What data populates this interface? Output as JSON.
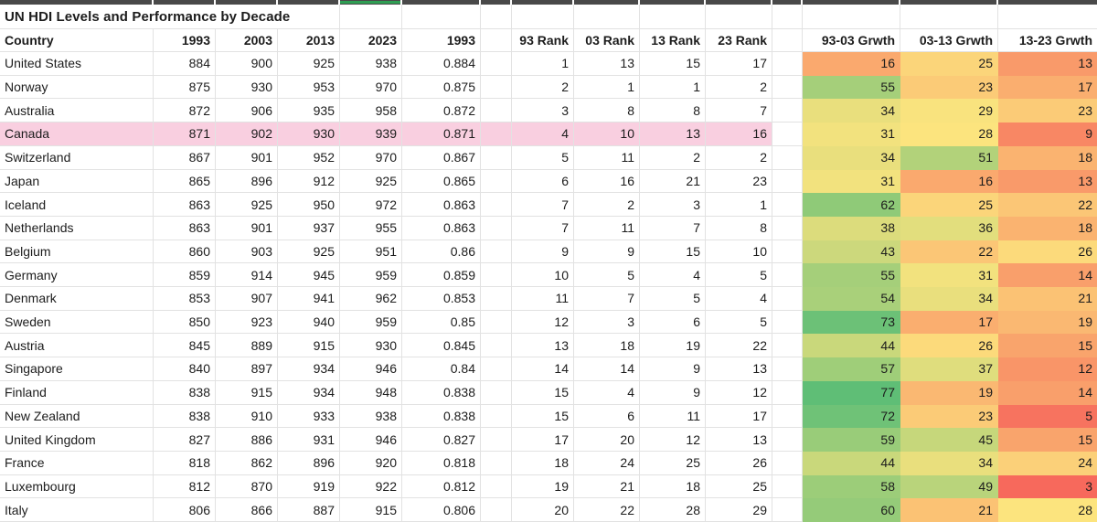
{
  "sheet": {
    "title": "UN HDI Levels and Performance by Decade",
    "selection": {
      "column_label": "2023",
      "column_index": 4,
      "indicator_color": "#2E9E53"
    },
    "highlight_color": "#F9CFE0",
    "gridline_color": "#E2E2E2",
    "header_strip_color": "#494949",
    "heatmap_scale": {
      "anchors": [
        [
          3,
          "#F7695C"
        ],
        [
          28,
          "#FCE47E"
        ],
        [
          77,
          "#5FBE76"
        ]
      ]
    },
    "columns": [
      {
        "key": "country",
        "label": "Country",
        "align": "left"
      },
      {
        "key": "y1993",
        "label": "1993",
        "align": "right"
      },
      {
        "key": "y2003",
        "label": "2003",
        "align": "right"
      },
      {
        "key": "y2013",
        "label": "2013",
        "align": "right"
      },
      {
        "key": "y2023",
        "label": "2023",
        "align": "right"
      },
      {
        "key": "hdi1993",
        "label": "1993",
        "align": "right"
      },
      {
        "key": "sp1",
        "label": "",
        "align": "left"
      },
      {
        "key": "r93",
        "label": "93 Rank",
        "align": "right"
      },
      {
        "key": "r03",
        "label": "03 Rank",
        "align": "right"
      },
      {
        "key": "r13",
        "label": "13 Rank",
        "align": "right"
      },
      {
        "key": "r23",
        "label": "23 Rank",
        "align": "right"
      },
      {
        "key": "sp2",
        "label": "",
        "align": "left"
      },
      {
        "key": "g9303",
        "label": "93-03 Grwth",
        "align": "right",
        "heatmap": true
      },
      {
        "key": "g0313",
        "label": "03-13 Grwth",
        "align": "right",
        "heatmap": true
      },
      {
        "key": "g1323",
        "label": "13-23 Grwth",
        "align": "right",
        "heatmap": true
      }
    ],
    "rows": [
      {
        "country": "United States",
        "y1993": 884,
        "y2003": 900,
        "y2013": 925,
        "y2023": 938,
        "hdi1993": "0.884",
        "r93": 1,
        "r03": 13,
        "r13": 15,
        "r23": 17,
        "g9303": 16,
        "g0313": 25,
        "g1323": 13,
        "highlight": false
      },
      {
        "country": "Norway",
        "y1993": 875,
        "y2003": 930,
        "y2013": 953,
        "y2023": 970,
        "hdi1993": "0.875",
        "r93": 2,
        "r03": 1,
        "r13": 1,
        "r23": 2,
        "g9303": 55,
        "g0313": 23,
        "g1323": 17,
        "highlight": false
      },
      {
        "country": "Australia",
        "y1993": 872,
        "y2003": 906,
        "y2013": 935,
        "y2023": 958,
        "hdi1993": "0.872",
        "r93": 3,
        "r03": 8,
        "r13": 8,
        "r23": 7,
        "g9303": 34,
        "g0313": 29,
        "g1323": 23,
        "highlight": false
      },
      {
        "country": "Canada",
        "y1993": 871,
        "y2003": 902,
        "y2013": 930,
        "y2023": 939,
        "hdi1993": "0.871",
        "r93": 4,
        "r03": 10,
        "r13": 13,
        "r23": 16,
        "g9303": 31,
        "g0313": 28,
        "g1323": 9,
        "highlight": true
      },
      {
        "country": "Switzerland",
        "y1993": 867,
        "y2003": 901,
        "y2013": 952,
        "y2023": 970,
        "hdi1993": "0.867",
        "r93": 5,
        "r03": 11,
        "r13": 2,
        "r23": 2,
        "g9303": 34,
        "g0313": 51,
        "g1323": 18,
        "highlight": false
      },
      {
        "country": "Japan",
        "y1993": 865,
        "y2003": 896,
        "y2013": 912,
        "y2023": 925,
        "hdi1993": "0.865",
        "r93": 6,
        "r03": 16,
        "r13": 21,
        "r23": 23,
        "g9303": 31,
        "g0313": 16,
        "g1323": 13,
        "highlight": false
      },
      {
        "country": "Iceland",
        "y1993": 863,
        "y2003": 925,
        "y2013": 950,
        "y2023": 972,
        "hdi1993": "0.863",
        "r93": 7,
        "r03": 2,
        "r13": 3,
        "r23": 1,
        "g9303": 62,
        "g0313": 25,
        "g1323": 22,
        "highlight": false
      },
      {
        "country": "Netherlands",
        "y1993": 863,
        "y2003": 901,
        "y2013": 937,
        "y2023": 955,
        "hdi1993": "0.863",
        "r93": 7,
        "r03": 11,
        "r13": 7,
        "r23": 8,
        "g9303": 38,
        "g0313": 36,
        "g1323": 18,
        "highlight": false
      },
      {
        "country": "Belgium",
        "y1993": 860,
        "y2003": 903,
        "y2013": 925,
        "y2023": 951,
        "hdi1993": "0.86",
        "r93": 9,
        "r03": 9,
        "r13": 15,
        "r23": 10,
        "g9303": 43,
        "g0313": 22,
        "g1323": 26,
        "highlight": false
      },
      {
        "country": "Germany",
        "y1993": 859,
        "y2003": 914,
        "y2013": 945,
        "y2023": 959,
        "hdi1993": "0.859",
        "r93": 10,
        "r03": 5,
        "r13": 4,
        "r23": 5,
        "g9303": 55,
        "g0313": 31,
        "g1323": 14,
        "highlight": false
      },
      {
        "country": "Denmark",
        "y1993": 853,
        "y2003": 907,
        "y2013": 941,
        "y2023": 962,
        "hdi1993": "0.853",
        "r93": 11,
        "r03": 7,
        "r13": 5,
        "r23": 4,
        "g9303": 54,
        "g0313": 34,
        "g1323": 21,
        "highlight": false
      },
      {
        "country": "Sweden",
        "y1993": 850,
        "y2003": 923,
        "y2013": 940,
        "y2023": 959,
        "hdi1993": "0.85",
        "r93": 12,
        "r03": 3,
        "r13": 6,
        "r23": 5,
        "g9303": 73,
        "g0313": 17,
        "g1323": 19,
        "highlight": false
      },
      {
        "country": "Austria",
        "y1993": 845,
        "y2003": 889,
        "y2013": 915,
        "y2023": 930,
        "hdi1993": "0.845",
        "r93": 13,
        "r03": 18,
        "r13": 19,
        "r23": 22,
        "g9303": 44,
        "g0313": 26,
        "g1323": 15,
        "highlight": false
      },
      {
        "country": "Singapore",
        "y1993": 840,
        "y2003": 897,
        "y2013": 934,
        "y2023": 946,
        "hdi1993": "0.84",
        "r93": 14,
        "r03": 14,
        "r13": 9,
        "r23": 13,
        "g9303": 57,
        "g0313": 37,
        "g1323": 12,
        "highlight": false
      },
      {
        "country": "Finland",
        "y1993": 838,
        "y2003": 915,
        "y2013": 934,
        "y2023": 948,
        "hdi1993": "0.838",
        "r93": 15,
        "r03": 4,
        "r13": 9,
        "r23": 12,
        "g9303": 77,
        "g0313": 19,
        "g1323": 14,
        "highlight": false
      },
      {
        "country": "New Zealand",
        "y1993": 838,
        "y2003": 910,
        "y2013": 933,
        "y2023": 938,
        "hdi1993": "0.838",
        "r93": 15,
        "r03": 6,
        "r13": 11,
        "r23": 17,
        "g9303": 72,
        "g0313": 23,
        "g1323": 5,
        "highlight": false
      },
      {
        "country": "United Kingdom",
        "y1993": 827,
        "y2003": 886,
        "y2013": 931,
        "y2023": 946,
        "hdi1993": "0.827",
        "r93": 17,
        "r03": 20,
        "r13": 12,
        "r23": 13,
        "g9303": 59,
        "g0313": 45,
        "g1323": 15,
        "highlight": false
      },
      {
        "country": "France",
        "y1993": 818,
        "y2003": 862,
        "y2013": 896,
        "y2023": 920,
        "hdi1993": "0.818",
        "r93": 18,
        "r03": 24,
        "r13": 25,
        "r23": 26,
        "g9303": 44,
        "g0313": 34,
        "g1323": 24,
        "highlight": false
      },
      {
        "country": "Luxembourg",
        "y1993": 812,
        "y2003": 870,
        "y2013": 919,
        "y2023": 922,
        "hdi1993": "0.812",
        "r93": 19,
        "r03": 21,
        "r13": 18,
        "r23": 25,
        "g9303": 58,
        "g0313": 49,
        "g1323": 3,
        "highlight": false
      },
      {
        "country": "Italy",
        "y1993": 806,
        "y2003": 866,
        "y2013": 887,
        "y2023": 915,
        "hdi1993": "0.806",
        "r93": 20,
        "r03": 22,
        "r13": 28,
        "r23": 29,
        "g9303": 60,
        "g0313": 21,
        "g1323": 28,
        "highlight": false
      }
    ]
  }
}
